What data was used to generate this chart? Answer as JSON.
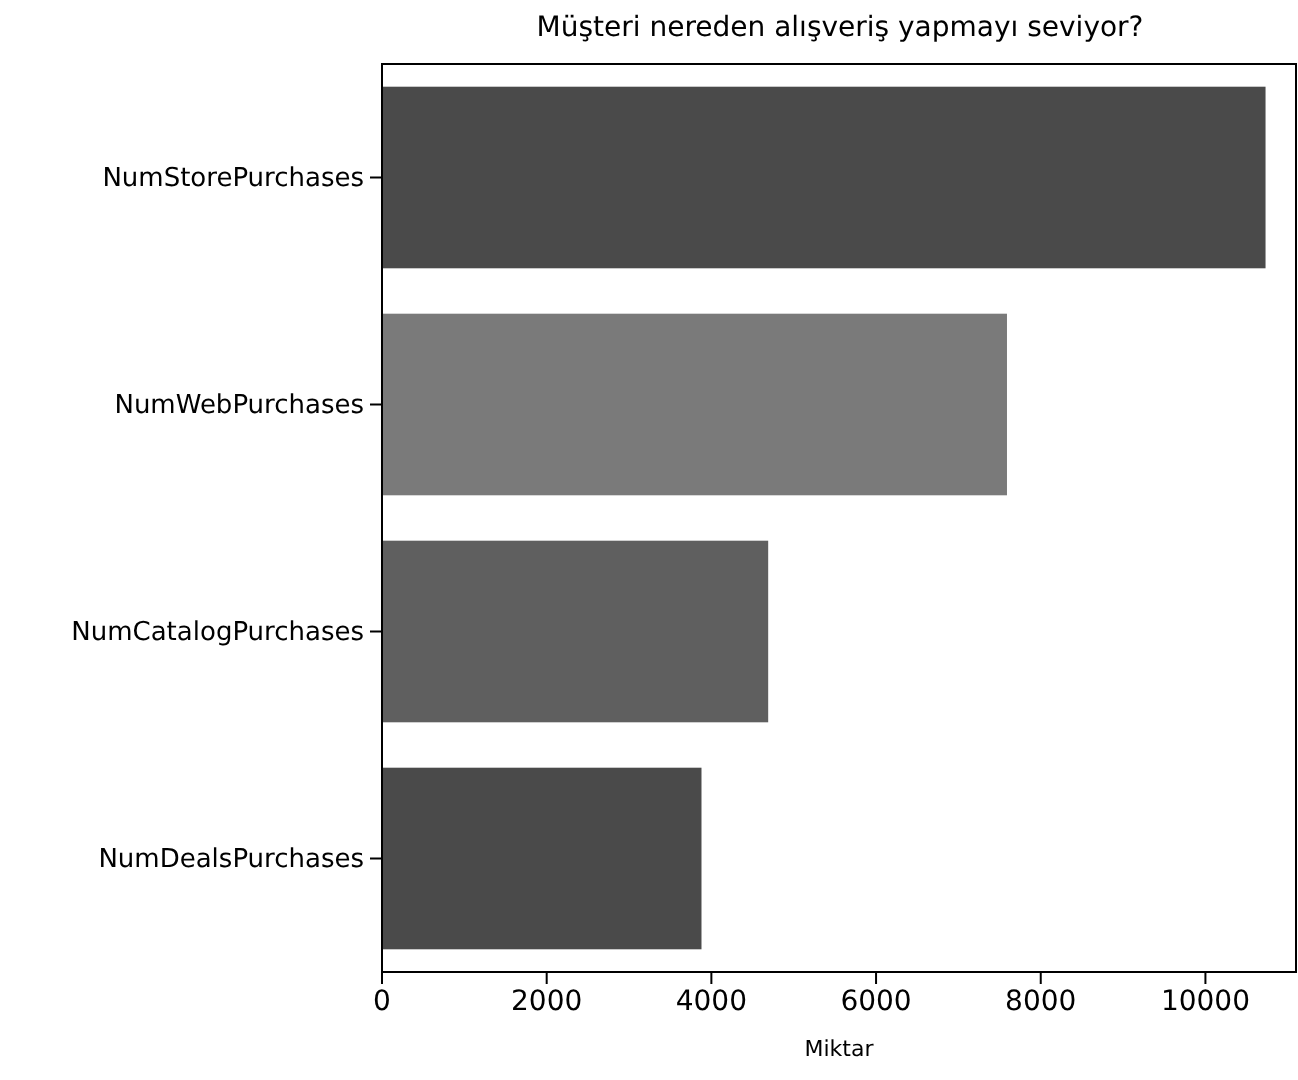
{
  "chart_data": {
    "type": "bar",
    "orientation": "horizontal",
    "title": "Müşteri nereden alışveriş yapmayı seviyor?",
    "xlabel": "Miktar",
    "categories": [
      "NumStorePurchases",
      "NumWebPurchases",
      "NumCatalogPurchases",
      "NumDealsPurchases"
    ],
    "values": [
      10730,
      7590,
      4690,
      3880
    ],
    "colors": [
      "#4a4a4a",
      "#7a7a7a",
      "#5f5f5f",
      "#4a4a4a"
    ],
    "xlim": [
      0,
      11100
    ],
    "xticks": [
      0,
      2000,
      4000,
      6000,
      8000,
      10000
    ]
  }
}
